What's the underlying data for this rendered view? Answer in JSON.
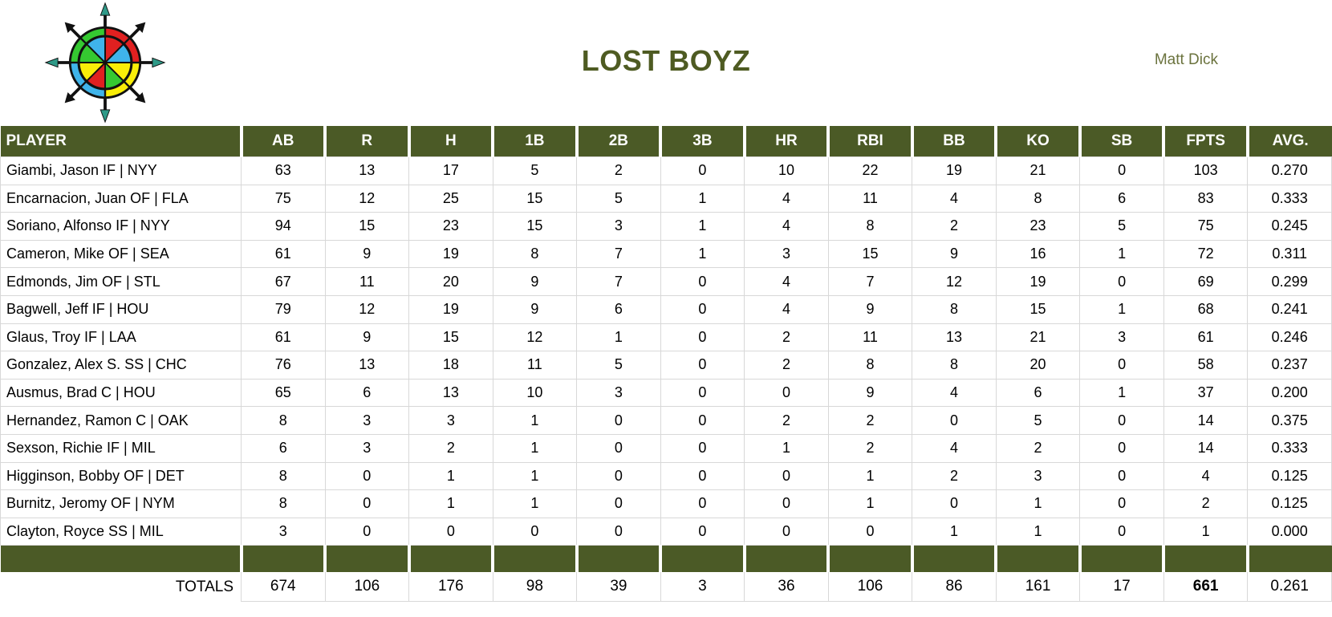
{
  "page": {
    "title": "LOST BOYZ",
    "owner": "Matt Dick",
    "logo": "compass-rose-logo"
  },
  "colors": {
    "header_green": "#4b5a26",
    "title_green": "#4e5b22",
    "owner_green": "#6b733e",
    "grid_line": "#d8d8d8",
    "logo_red": "#e02020",
    "logo_blue": "#3fb4ea",
    "logo_green": "#35c931",
    "logo_yellow": "#f9ee08",
    "logo_teal": "#2f9a88"
  },
  "table": {
    "columns": [
      "PLAYER",
      "AB",
      "R",
      "H",
      "1B",
      "2B",
      "3B",
      "HR",
      "RBI",
      "BB",
      "KO",
      "SB",
      "FPTS",
      "AVG."
    ],
    "rows": [
      {
        "player": "Giambi, Jason IF | NYY",
        "stats": [
          "63",
          "13",
          "17",
          "5",
          "2",
          "0",
          "10",
          "22",
          "19",
          "21",
          "0",
          "103",
          "0.270"
        ]
      },
      {
        "player": "Encarnacion, Juan OF | FLA",
        "stats": [
          "75",
          "12",
          "25",
          "15",
          "5",
          "1",
          "4",
          "11",
          "4",
          "8",
          "6",
          "83",
          "0.333"
        ]
      },
      {
        "player": "Soriano, Alfonso IF | NYY",
        "stats": [
          "94",
          "15",
          "23",
          "15",
          "3",
          "1",
          "4",
          "8",
          "2",
          "23",
          "5",
          "75",
          "0.245"
        ]
      },
      {
        "player": "Cameron, Mike OF | SEA",
        "stats": [
          "61",
          "9",
          "19",
          "8",
          "7",
          "1",
          "3",
          "15",
          "9",
          "16",
          "1",
          "72",
          "0.311"
        ]
      },
      {
        "player": "Edmonds, Jim OF | STL",
        "stats": [
          "67",
          "11",
          "20",
          "9",
          "7",
          "0",
          "4",
          "7",
          "12",
          "19",
          "0",
          "69",
          "0.299"
        ]
      },
      {
        "player": "Bagwell, Jeff IF | HOU",
        "stats": [
          "79",
          "12",
          "19",
          "9",
          "6",
          "0",
          "4",
          "9",
          "8",
          "15",
          "1",
          "68",
          "0.241"
        ]
      },
      {
        "player": "Glaus, Troy IF | LAA",
        "stats": [
          "61",
          "9",
          "15",
          "12",
          "1",
          "0",
          "2",
          "11",
          "13",
          "21",
          "3",
          "61",
          "0.246"
        ]
      },
      {
        "player": "Gonzalez, Alex S. SS | CHC",
        "stats": [
          "76",
          "13",
          "18",
          "11",
          "5",
          "0",
          "2",
          "8",
          "8",
          "20",
          "0",
          "58",
          "0.237"
        ]
      },
      {
        "player": "Ausmus, Brad C | HOU",
        "stats": [
          "65",
          "6",
          "13",
          "10",
          "3",
          "0",
          "0",
          "9",
          "4",
          "6",
          "1",
          "37",
          "0.200"
        ]
      },
      {
        "player": "Hernandez, Ramon C | OAK",
        "stats": [
          "8",
          "3",
          "3",
          "1",
          "0",
          "0",
          "2",
          "2",
          "0",
          "5",
          "0",
          "14",
          "0.375"
        ]
      },
      {
        "player": "Sexson, Richie IF | MIL",
        "stats": [
          "6",
          "3",
          "2",
          "1",
          "0",
          "0",
          "1",
          "2",
          "4",
          "2",
          "0",
          "14",
          "0.333"
        ]
      },
      {
        "player": "Higginson, Bobby OF | DET",
        "stats": [
          "8",
          "0",
          "1",
          "1",
          "0",
          "0",
          "0",
          "1",
          "2",
          "3",
          "0",
          "4",
          "0.125"
        ]
      },
      {
        "player": "Burnitz, Jeromy OF | NYM",
        "stats": [
          "8",
          "0",
          "1",
          "1",
          "0",
          "0",
          "0",
          "1",
          "0",
          "1",
          "0",
          "2",
          "0.125"
        ]
      },
      {
        "player": "Clayton, Royce SS | MIL",
        "stats": [
          "3",
          "0",
          "0",
          "0",
          "0",
          "0",
          "0",
          "0",
          "1",
          "1",
          "0",
          "1",
          "0.000"
        ]
      }
    ],
    "totals": {
      "label": "TOTALS",
      "stats": [
        "674",
        "106",
        "176",
        "98",
        "39",
        "3",
        "36",
        "106",
        "86",
        "161",
        "17",
        "661",
        "0.261"
      ],
      "bold_index": 11
    }
  }
}
